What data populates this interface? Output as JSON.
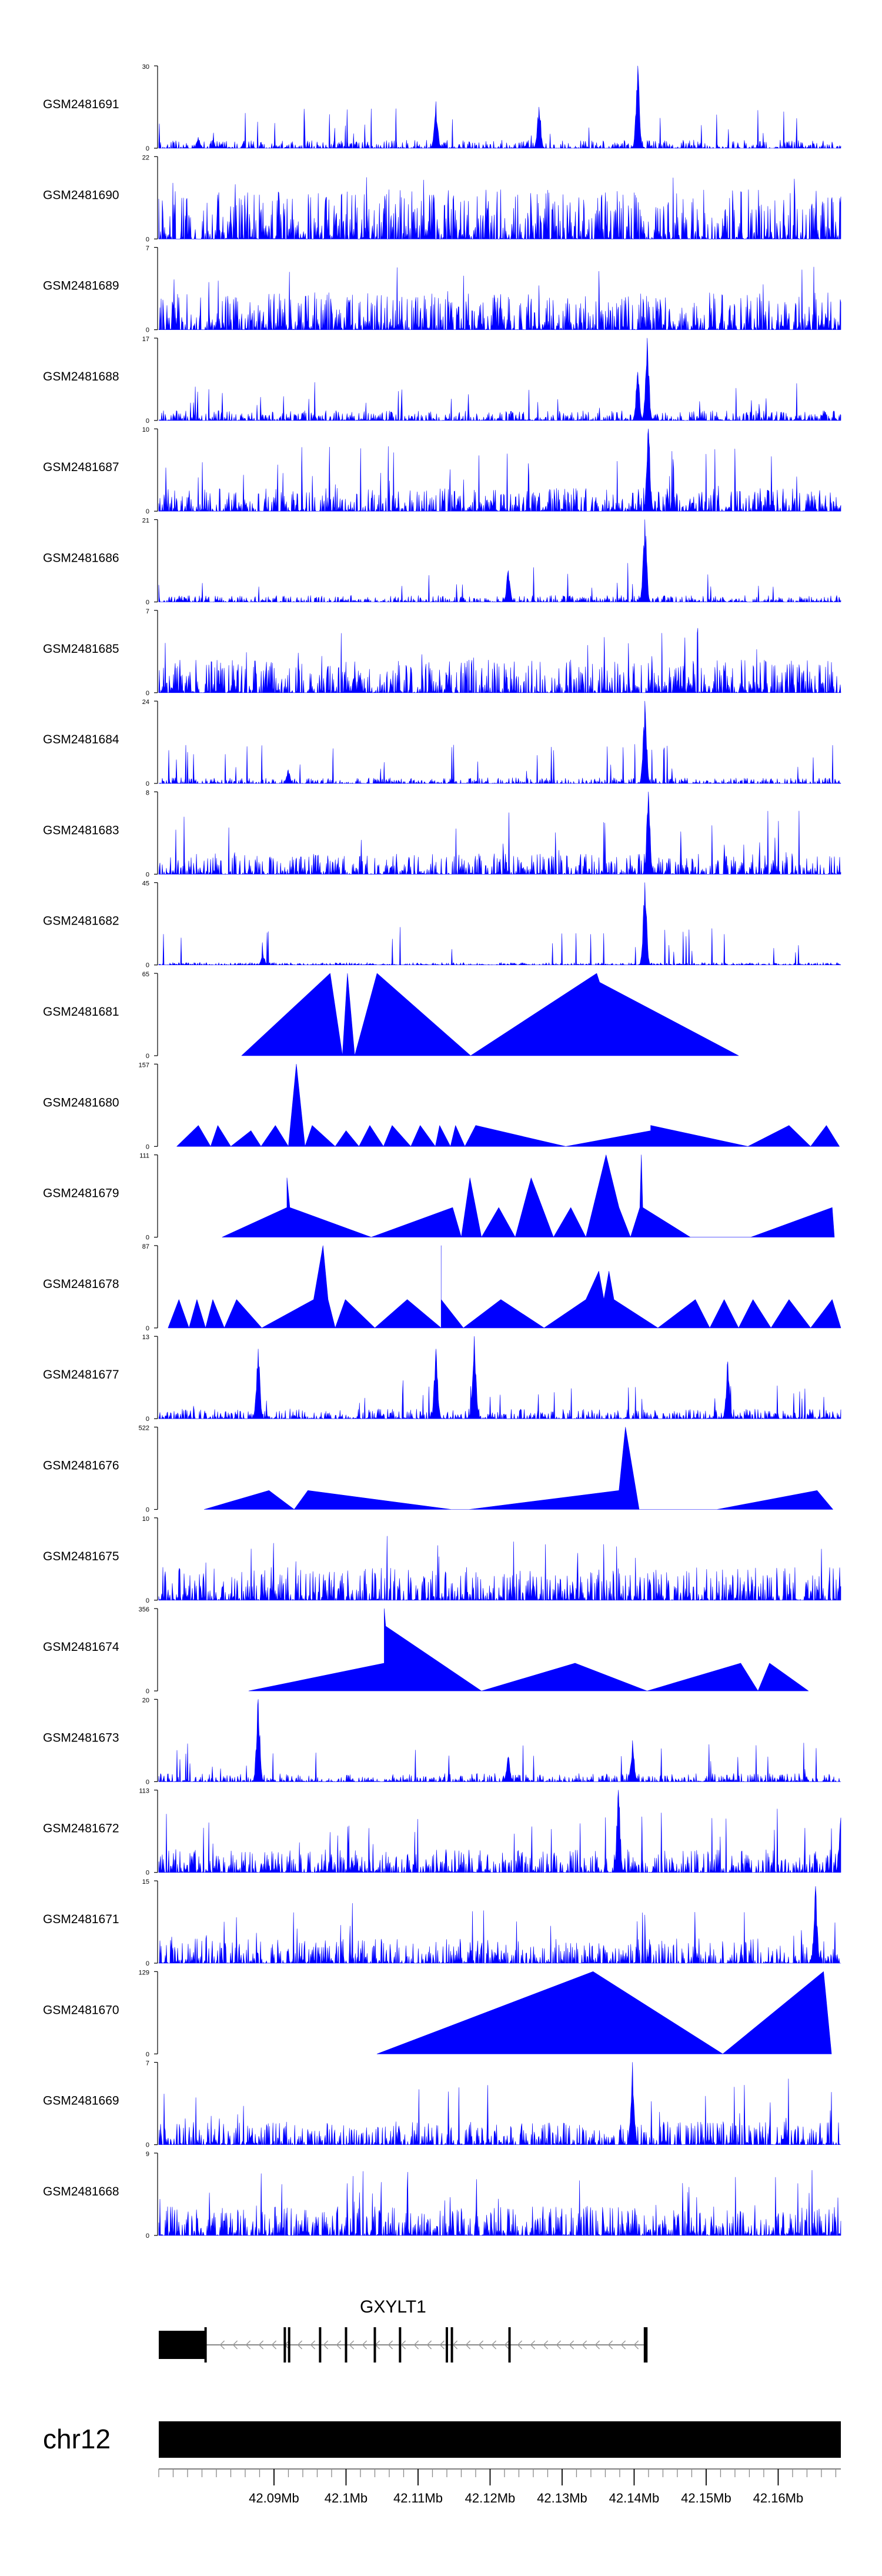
{
  "chart_data": {
    "type": "area",
    "title": "",
    "xlabel": "",
    "ylabel": "",
    "x_range_mb": [
      42.074,
      42.1687
    ],
    "tracks": [
      {
        "name": "GSM2481691",
        "ymax": 30,
        "ymin": 0,
        "style": "dense",
        "typical": 0.1,
        "seed": 11,
        "peaks": [
          {
            "pos": 42.1405,
            "value": 30
          },
          {
            "pos": 42.1125,
            "value": 17
          },
          {
            "pos": 42.1268,
            "value": 15
          },
          {
            "pos": 42.0795,
            "value": 4
          }
        ]
      },
      {
        "name": "GSM2481690",
        "ymax": 22,
        "ymin": 0,
        "style": "dense",
        "typical": 0.6,
        "seed": 12,
        "peaks": []
      },
      {
        "name": "GSM2481689",
        "ymax": 7,
        "ymin": 0,
        "style": "dense",
        "typical": 0.45,
        "seed": 13,
        "peaks": []
      },
      {
        "name": "GSM2481688",
        "ymax": 17,
        "ymin": 0,
        "style": "dense",
        "typical": 0.12,
        "seed": 14,
        "peaks": [
          {
            "pos": 42.1418,
            "value": 17
          },
          {
            "pos": 42.1405,
            "value": 10
          }
        ]
      },
      {
        "name": "GSM2481687",
        "ymax": 10,
        "ymin": 0,
        "style": "dense",
        "typical": 0.28,
        "seed": 15,
        "peaks": [
          {
            "pos": 42.142,
            "value": 10
          }
        ]
      },
      {
        "name": "GSM2481686",
        "ymax": 21,
        "ymin": 0,
        "style": "dense",
        "typical": 0.08,
        "seed": 16,
        "peaks": [
          {
            "pos": 42.1415,
            "value": 21
          },
          {
            "pos": 42.1225,
            "value": 8
          }
        ]
      },
      {
        "name": "GSM2481685",
        "ymax": 7,
        "ymin": 0,
        "style": "dense",
        "typical": 0.4,
        "seed": 17,
        "peaks": []
      },
      {
        "name": "GSM2481684",
        "ymax": 24,
        "ymin": 0,
        "style": "dense",
        "typical": 0.07,
        "seed": 18,
        "peaks": [
          {
            "pos": 42.1415,
            "value": 24
          },
          {
            "pos": 42.092,
            "value": 4
          }
        ]
      },
      {
        "name": "GSM2481683",
        "ymax": 8,
        "ymin": 0,
        "style": "dense",
        "typical": 0.25,
        "seed": 19,
        "peaks": [
          {
            "pos": 42.142,
            "value": 8
          }
        ]
      },
      {
        "name": "GSM2481682",
        "ymax": 45,
        "ymin": 0,
        "style": "dense",
        "typical": 0.03,
        "seed": 20,
        "peaks": [
          {
            "pos": 42.1415,
            "value": 45
          },
          {
            "pos": 42.0885,
            "value": 6
          }
        ]
      },
      {
        "name": "GSM2481681",
        "ymax": 65,
        "ymin": 0,
        "style": "sparse",
        "points": [
          [
            42.0855,
            0
          ],
          [
            42.0978,
            65
          ],
          [
            42.0995,
            0
          ],
          [
            42.1002,
            65
          ],
          [
            42.1012,
            0
          ],
          [
            42.1043,
            65
          ],
          [
            42.1173,
            0
          ],
          [
            42.1348,
            65
          ],
          [
            42.1352,
            58
          ],
          [
            42.1545,
            0
          ]
        ]
      },
      {
        "name": "GSM2481680",
        "ymax": 157,
        "ymin": 0,
        "style": "sparse",
        "points": [
          [
            42.0765,
            0
          ],
          [
            42.0795,
            40
          ],
          [
            42.0812,
            0
          ],
          [
            42.0822,
            40
          ],
          [
            42.084,
            0
          ],
          [
            42.0868,
            30
          ],
          [
            42.0882,
            0
          ],
          [
            42.0902,
            40
          ],
          [
            42.092,
            0
          ],
          [
            42.0931,
            157
          ],
          [
            42.0943,
            0
          ],
          [
            42.0953,
            40
          ],
          [
            42.0985,
            0
          ],
          [
            42.1,
            30
          ],
          [
            42.1018,
            0
          ],
          [
            42.1033,
            40
          ],
          [
            42.1052,
            0
          ],
          [
            42.1064,
            40
          ],
          [
            42.109,
            0
          ],
          [
            42.1103,
            40
          ],
          [
            42.1124,
            0
          ],
          [
            42.113,
            40
          ],
          [
            42.1145,
            0
          ],
          [
            42.1152,
            40
          ],
          [
            42.1165,
            0
          ],
          [
            42.118,
            40
          ],
          [
            42.1305,
            0
          ],
          [
            42.1423,
            30
          ],
          [
            42.1423,
            40
          ],
          [
            42.1558,
            0
          ],
          [
            42.1615,
            40
          ],
          [
            42.1645,
            0
          ],
          [
            42.1667,
            40
          ],
          [
            42.1685,
            0
          ]
        ]
      },
      {
        "name": "GSM2481679",
        "ymax": 111,
        "ymin": 0,
        "style": "sparse",
        "points": [
          [
            42.0828,
            0
          ],
          [
            42.0918,
            40
          ],
          [
            42.0918,
            80
          ],
          [
            42.0922,
            40
          ],
          [
            42.1035,
            0
          ],
          [
            42.1148,
            40
          ],
          [
            42.116,
            0
          ],
          [
            42.1172,
            80
          ],
          [
            42.1188,
            0
          ],
          [
            42.1212,
            40
          ],
          [
            42.1235,
            0
          ],
          [
            42.1257,
            80
          ],
          [
            42.1288,
            0
          ],
          [
            42.1312,
            40
          ],
          [
            42.1333,
            0
          ],
          [
            42.1361,
            111
          ],
          [
            42.1379,
            40
          ],
          [
            42.1395,
            0
          ],
          [
            42.1408,
            40
          ],
          [
            42.141,
            111
          ],
          [
            42.1412,
            40
          ],
          [
            42.1478,
            0
          ],
          [
            42.1562,
            0
          ],
          [
            42.1675,
            40
          ],
          [
            42.1678,
            0
          ]
        ]
      },
      {
        "name": "GSM2481678",
        "ymax": 87,
        "ymin": 0,
        "style": "sparse",
        "points": [
          [
            42.0753,
            0
          ],
          [
            42.0768,
            30
          ],
          [
            42.0782,
            0
          ],
          [
            42.0793,
            30
          ],
          [
            42.0805,
            0
          ],
          [
            42.0815,
            30
          ],
          [
            42.0831,
            0
          ],
          [
            42.0848,
            30
          ],
          [
            42.0883,
            0
          ],
          [
            42.0955,
            30
          ],
          [
            42.0968,
            87
          ],
          [
            42.0975,
            30
          ],
          [
            42.0985,
            0
          ],
          [
            42.0999,
            30
          ],
          [
            42.104,
            0
          ],
          [
            42.1085,
            30
          ],
          [
            42.1132,
            0
          ],
          [
            42.1132,
            30
          ],
          [
            42.1132,
            87
          ],
          [
            42.1132,
            30
          ],
          [
            42.1163,
            0
          ],
          [
            42.1215,
            30
          ],
          [
            42.1275,
            0
          ],
          [
            42.1333,
            30
          ],
          [
            42.1351,
            60
          ],
          [
            42.1358,
            30
          ],
          [
            42.1365,
            60
          ],
          [
            42.1372,
            30
          ],
          [
            42.1433,
            0
          ],
          [
            42.1485,
            30
          ],
          [
            42.1505,
            0
          ],
          [
            42.1525,
            30
          ],
          [
            42.1545,
            0
          ],
          [
            42.1565,
            30
          ],
          [
            42.159,
            0
          ],
          [
            42.1615,
            30
          ],
          [
            42.1645,
            0
          ],
          [
            42.1675,
            30
          ],
          [
            42.1687,
            0
          ]
        ]
      },
      {
        "name": "GSM2481677",
        "ymax": 13,
        "ymin": 0,
        "style": "dense",
        "typical": 0.12,
        "seed": 21,
        "peaks": [
          {
            "pos": 42.1178,
            "value": 13
          },
          {
            "pos": 42.0878,
            "value": 11
          },
          {
            "pos": 42.1125,
            "value": 11
          },
          {
            "pos": 42.153,
            "value": 9
          }
        ]
      },
      {
        "name": "GSM2481676",
        "ymax": 522,
        "ymin": 0,
        "style": "sparse",
        "points": [
          [
            42.0803,
            0
          ],
          [
            42.0893,
            120
          ],
          [
            42.0928,
            0
          ],
          [
            42.0947,
            120
          ],
          [
            42.1146,
            0
          ],
          [
            42.1171,
            0
          ],
          [
            42.1379,
            120
          ],
          [
            42.1388,
            522
          ],
          [
            42.1407,
            0
          ],
          [
            42.1515,
            0
          ],
          [
            42.1654,
            120
          ],
          [
            42.1676,
            0
          ]
        ]
      },
      {
        "name": "GSM2481675",
        "ymax": 10,
        "ymin": 0,
        "style": "dense",
        "typical": 0.4,
        "seed": 22,
        "peaks": []
      },
      {
        "name": "GSM2481674",
        "ymax": 356,
        "ymin": 0,
        "style": "sparse",
        "points": [
          [
            42.0865,
            0
          ],
          [
            42.1053,
            120
          ],
          [
            42.1053,
            356
          ],
          [
            42.1055,
            280
          ],
          [
            42.1188,
            0
          ],
          [
            42.1318,
            120
          ],
          [
            42.1418,
            0
          ],
          [
            42.1548,
            120
          ],
          [
            42.1572,
            0
          ],
          [
            42.1588,
            120
          ],
          [
            42.1642,
            0
          ]
        ]
      },
      {
        "name": "GSM2481673",
        "ymax": 20,
        "ymin": 0,
        "style": "dense",
        "typical": 0.1,
        "seed": 23,
        "peaks": [
          {
            "pos": 42.0878,
            "value": 20
          },
          {
            "pos": 42.1398,
            "value": 10
          },
          {
            "pos": 42.1225,
            "value": 6
          }
        ]
      },
      {
        "name": "GSM2481672",
        "ymax": 113,
        "ymin": 0,
        "style": "dense",
        "typical": 0.28,
        "seed": 24,
        "peaks": [
          {
            "pos": 42.1378,
            "value": 113
          },
          {
            "pos": 42.1687,
            "value": 75
          }
        ]
      },
      {
        "name": "GSM2481671",
        "ymax": 15,
        "ymin": 0,
        "style": "dense",
        "typical": 0.3,
        "seed": 25,
        "peaks": [
          {
            "pos": 42.1652,
            "value": 14
          }
        ]
      },
      {
        "name": "GSM2481670",
        "ymax": 129,
        "ymin": 0,
        "style": "sparse",
        "points": [
          [
            42.1043,
            0
          ],
          [
            42.1343,
            129
          ],
          [
            42.1523,
            0
          ],
          [
            42.1663,
            129
          ],
          [
            42.1674,
            0
          ]
        ]
      },
      {
        "name": "GSM2481669",
        "ymax": 7,
        "ymin": 0,
        "style": "dense",
        "typical": 0.28,
        "seed": 26,
        "peaks": [
          {
            "pos": 42.1398,
            "value": 7
          }
        ]
      },
      {
        "name": "GSM2481668",
        "ymax": 9,
        "ymin": 0,
        "style": "dense",
        "typical": 0.35,
        "seed": 27,
        "peaks": []
      }
    ],
    "gene": {
      "name": "GXYLT1",
      "strand": "-",
      "start_mb": 42.074,
      "end_mb": 42.1417,
      "utr_block_mb": [
        42.074,
        42.0805
      ],
      "exons_mb": [
        42.0805,
        42.0915,
        42.0921,
        42.0964,
        42.1,
        42.104,
        42.1075,
        42.114,
        42.1147,
        42.1227,
        42.1415,
        42.1417
      ]
    },
    "ideogram": {
      "label": "chr12"
    },
    "axis": {
      "major_ticks_mb": [
        42.09,
        42.1,
        42.11,
        42.12,
        42.13,
        42.14,
        42.15,
        42.16
      ],
      "tick_labels": [
        "42.09Mb",
        "42.1Mb",
        "42.11Mb",
        "42.12Mb",
        "42.13Mb",
        "42.14Mb",
        "42.15Mb",
        "42.16Mb"
      ],
      "minor_step_mb": 0.002
    },
    "colors": {
      "signal": "#0000ff",
      "ideogram": "#000000",
      "text": "#000000",
      "background": "#ffffff"
    }
  }
}
